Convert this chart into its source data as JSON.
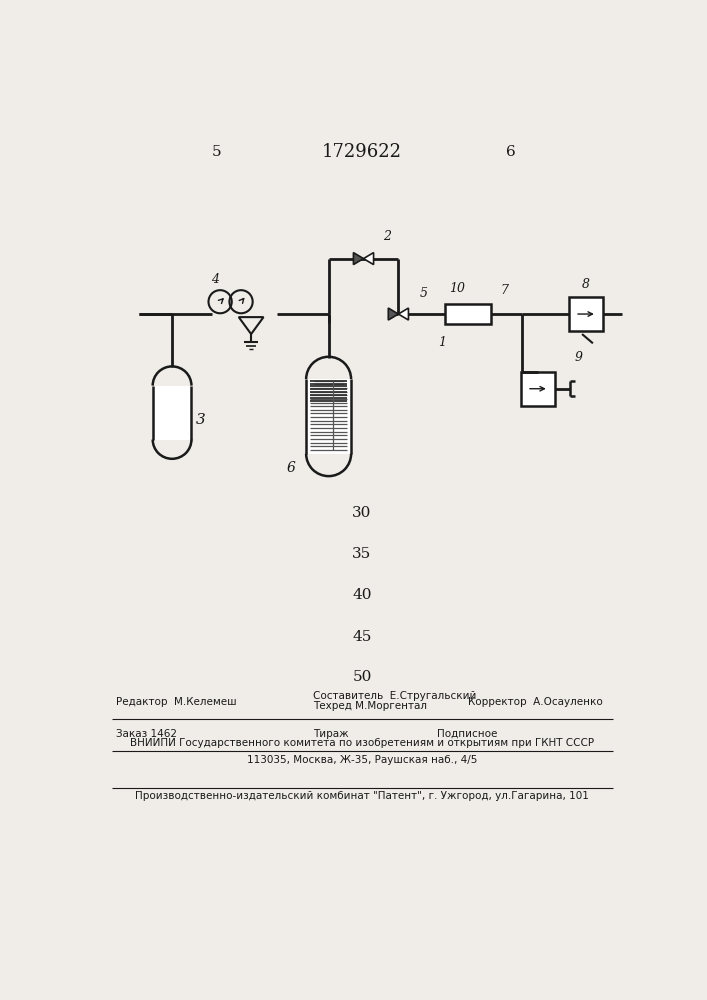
{
  "bg_color": "#f0ede8",
  "line_color": "#1a1a1a",
  "page_num_left": "5",
  "page_num_center": "1729622",
  "page_num_right": "6",
  "numbers": [
    [
      "30",
      490
    ],
    [
      "35",
      437
    ],
    [
      "40",
      383
    ],
    [
      "45",
      329
    ],
    [
      "50",
      276
    ]
  ],
  "footer_line1_left": "Редактор  М.Келемеш",
  "footer_line1_center": "Составитель  Е.Стругальский",
  "footer_line1_right": "Корректор  А.Осауленко",
  "footer_line2_center": "Техред М.Моргентал",
  "footer_line3_left": "Заказ 1462",
  "footer_line3_center": "Тираж",
  "footer_line3_right": "Подписное",
  "footer_line4": "ВНИИПИ Государственного комитета по изобретениям и открытиям при ГКНТ СССР",
  "footer_line5": "113035, Москва, Ж-35, Раушская наб., 4/5",
  "footer_last": "Производственно-издательский комбинат \"Патент\", г. Ужгород, ул.Гагарина, 101"
}
